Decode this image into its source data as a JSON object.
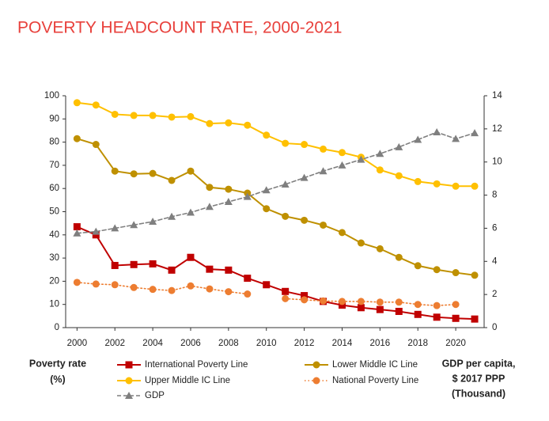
{
  "chart_data": {
    "type": "line",
    "title": "POVERTY HEADCOUNT RATE, 2000-2021",
    "y_label": [
      "Poverty rate",
      "(%)"
    ],
    "y2_label": [
      "GDP per capita,",
      "$ 2017 PPP",
      "(Thousand)"
    ],
    "x": [
      2000,
      2001,
      2002,
      2003,
      2004,
      2005,
      2006,
      2007,
      2008,
      2009,
      2010,
      2011,
      2012,
      2013,
      2014,
      2015,
      2016,
      2017,
      2018,
      2019,
      2020,
      2021
    ],
    "xlim": [
      1999.4,
      2021.5
    ],
    "xticks": [
      2000,
      2002,
      2004,
      2006,
      2008,
      2010,
      2012,
      2014,
      2016,
      2018,
      2020
    ],
    "ylim": [
      0,
      100
    ],
    "yticks": [
      0,
      10,
      20,
      30,
      40,
      50,
      60,
      70,
      80,
      90,
      100
    ],
    "y2lim": [
      0,
      14
    ],
    "y2ticks": [
      0,
      2,
      4,
      6,
      8,
      10,
      12,
      14
    ],
    "series": [
      {
        "name": "International Poverty Line",
        "color": "#c00000",
        "marker": "square",
        "dash": "solid",
        "values": [
          43.5,
          40,
          26.8,
          27.2,
          27.5,
          24.8,
          30.3,
          25.2,
          24.8,
          21.3,
          18.5,
          15.6,
          13.8,
          11.3,
          9.7,
          8.6,
          7.8,
          7,
          5.7,
          4.5,
          4,
          3.7
        ]
      },
      {
        "name": "Lower Middle IC Line",
        "color": "#bf9000",
        "marker": "circle",
        "dash": "solid",
        "values": [
          81.5,
          79,
          67.5,
          66.3,
          66.5,
          63.5,
          67.5,
          60.5,
          59.7,
          58,
          51.3,
          48,
          46.3,
          44.2,
          41,
          36.5,
          34,
          30.3,
          26.7,
          25,
          23.7,
          22.6
        ]
      },
      {
        "name": "Upper Middle IC Line",
        "color": "#ffc000",
        "marker": "circle",
        "dash": "solid",
        "values": [
          97,
          96,
          92,
          91.5,
          91.5,
          90.8,
          91,
          88,
          88.3,
          87.3,
          83,
          79.5,
          79,
          77,
          75.5,
          73.5,
          68,
          65.5,
          63,
          62,
          61,
          61
        ]
      },
      {
        "name": "National Poverty Line",
        "color": "#ed7d31",
        "marker": "circle",
        "dash": "dotted",
        "values": [
          19.5,
          18.8,
          18.5,
          17.3,
          16.5,
          16,
          18,
          16.7,
          15.5,
          14.5,
          null,
          12.5,
          12,
          11.5,
          11.3,
          11.3,
          11,
          11,
          10,
          9.5,
          10,
          null
        ]
      },
      {
        "name": "GDP",
        "color": "#7f7f7f",
        "marker": "triangle",
        "dash": "dashed",
        "axis": "y2",
        "values": [
          5.7,
          5.8,
          6,
          6.2,
          6.4,
          6.7,
          6.95,
          7.3,
          7.6,
          7.9,
          8.3,
          8.65,
          9.05,
          9.45,
          9.8,
          10.15,
          10.5,
          10.9,
          11.35,
          11.8,
          11.4,
          11.75
        ]
      }
    ]
  }
}
